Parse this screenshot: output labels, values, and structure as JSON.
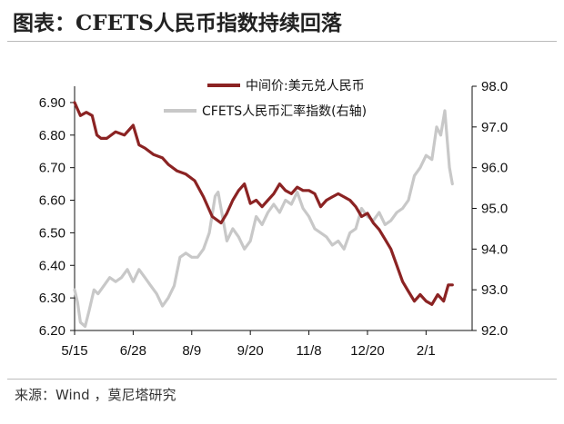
{
  "title": "图表：CFETS人民币指数持续回落",
  "source": "来源：Wind ，莫尼塔研究",
  "colors": {
    "usdcny": "#8b2323",
    "cfets": "#c8c8c8",
    "axis": "#111111"
  },
  "chart_data": {
    "type": "line",
    "x_ticks": [
      "5/15",
      "6/28",
      "8/9",
      "9/20",
      "11/8",
      "12/20",
      "2/1"
    ],
    "y_left_ticks": [
      "6.90",
      "6.80",
      "6.70",
      "6.60",
      "6.50",
      "6.40",
      "6.30",
      "6.20"
    ],
    "y_right_ticks": [
      "98.0",
      "97.0",
      "96.0",
      "95.0",
      "94.0",
      "93.0",
      "92.0"
    ],
    "ylim_left": [
      6.2,
      6.95
    ],
    "ylim_right": [
      92.0,
      98.0
    ],
    "xlim": [
      0,
      6.6
    ],
    "legend_position": "top",
    "series": [
      {
        "name": "中间价:美元兑人民币",
        "axis": "left",
        "x": [
          0,
          0.05,
          0.1,
          0.2,
          0.3,
          0.38,
          0.45,
          0.55,
          0.7,
          0.85,
          1,
          1.1,
          1.2,
          1.35,
          1.5,
          1.6,
          1.75,
          1.9,
          2.05,
          2.2,
          2.35,
          2.5,
          2.6,
          2.7,
          2.8,
          2.9,
          3,
          3.1,
          3.2,
          3.3,
          3.4,
          3.5,
          3.6,
          3.7,
          3.8,
          3.9,
          4,
          4.1,
          4.2,
          4.3,
          4.4,
          4.5,
          4.6,
          4.7,
          4.8,
          4.9,
          5,
          5.1,
          5.2,
          5.3,
          5.4,
          5.5,
          5.6,
          5.7,
          5.8,
          5.9,
          6,
          6.1,
          6.2,
          6.3,
          6.38,
          6.45
        ],
        "y": [
          6.9,
          6.88,
          6.86,
          6.87,
          6.86,
          6.8,
          6.79,
          6.79,
          6.81,
          6.8,
          6.83,
          6.77,
          6.76,
          6.74,
          6.73,
          6.71,
          6.69,
          6.68,
          6.66,
          6.61,
          6.55,
          6.53,
          6.56,
          6.6,
          6.63,
          6.65,
          6.59,
          6.6,
          6.58,
          6.6,
          6.62,
          6.65,
          6.63,
          6.62,
          6.64,
          6.63,
          6.63,
          6.62,
          6.58,
          6.6,
          6.61,
          6.62,
          6.61,
          6.6,
          6.58,
          6.55,
          6.56,
          6.53,
          6.51,
          6.48,
          6.45,
          6.4,
          6.35,
          6.32,
          6.29,
          6.31,
          6.29,
          6.28,
          6.31,
          6.29,
          6.34,
          6.34
        ]
      },
      {
        "name": "CFETS人民币汇率指数(右轴)",
        "axis": "right",
        "x": [
          0,
          0.05,
          0.1,
          0.18,
          0.25,
          0.33,
          0.4,
          0.5,
          0.6,
          0.7,
          0.8,
          0.9,
          1,
          1.1,
          1.2,
          1.3,
          1.4,
          1.5,
          1.6,
          1.7,
          1.8,
          1.9,
          2,
          2.1,
          2.2,
          2.3,
          2.4,
          2.45,
          2.5,
          2.55,
          2.6,
          2.7,
          2.8,
          2.9,
          3,
          3.1,
          3.2,
          3.3,
          3.4,
          3.5,
          3.6,
          3.7,
          3.8,
          3.9,
          4,
          4.1,
          4.2,
          4.3,
          4.4,
          4.5,
          4.6,
          4.7,
          4.8,
          4.9,
          5,
          5.1,
          5.2,
          5.3,
          5.4,
          5.5,
          5.6,
          5.7,
          5.8,
          5.9,
          6,
          6.1,
          6.18,
          6.25,
          6.32,
          6.4,
          6.45
        ],
        "y": [
          93.0,
          92.7,
          92.2,
          92.1,
          92.5,
          93.0,
          92.9,
          93.1,
          93.3,
          93.2,
          93.3,
          93.5,
          93.2,
          93.5,
          93.3,
          93.1,
          92.9,
          92.6,
          92.8,
          93.1,
          93.8,
          93.9,
          93.8,
          93.8,
          94.0,
          94.4,
          95.3,
          95.4,
          95.0,
          94.6,
          94.2,
          94.5,
          94.3,
          94.0,
          94.2,
          94.8,
          94.6,
          94.9,
          95.1,
          94.9,
          95.2,
          95.1,
          95.4,
          95.0,
          94.8,
          94.5,
          94.4,
          94.3,
          94.1,
          94.2,
          94.0,
          94.4,
          94.5,
          95.0,
          94.8,
          94.7,
          94.9,
          94.6,
          94.7,
          94.9,
          95.0,
          95.2,
          95.8,
          96.0,
          96.3,
          96.2,
          97.0,
          96.8,
          97.4,
          96.0,
          95.6
        ]
      }
    ]
  }
}
